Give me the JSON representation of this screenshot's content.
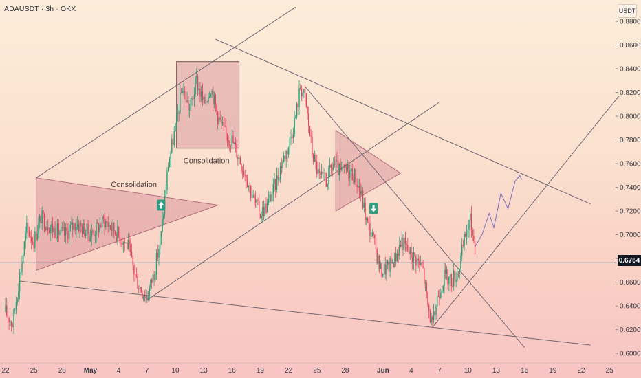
{
  "header": {
    "symbol": "ADAUSDT · 3h · OKX",
    "currency": "USDT"
  },
  "last_price": "0.6764",
  "chart_data": {
    "type": "candlestick",
    "symbol": "ADAUSDT",
    "interval": "3h",
    "exchange": "OKX",
    "y_axis_ticks": [
      "0.8800",
      "0.8600",
      "0.8400",
      "0.8200",
      "0.8000",
      "0.7800",
      "0.7600",
      "0.7400",
      "0.7200",
      "0.7000",
      "0.6800",
      "0.6600",
      "0.6400",
      "0.6200",
      "0.6000"
    ],
    "ylim": [
      0.592,
      0.898
    ],
    "x_axis_ticks": [
      {
        "label": "22",
        "i": 0
      },
      {
        "label": "25",
        "i": 24
      },
      {
        "label": "28",
        "i": 48
      },
      {
        "label": "May",
        "i": 72
      },
      {
        "label": "4",
        "i": 96
      },
      {
        "label": "7",
        "i": 120
      },
      {
        "label": "10",
        "i": 144
      },
      {
        "label": "13",
        "i": 168
      },
      {
        "label": "16",
        "i": 192
      },
      {
        "label": "19",
        "i": 216
      },
      {
        "label": "22",
        "i": 240
      },
      {
        "label": "25",
        "i": 264
      },
      {
        "label": "28",
        "i": 288
      },
      {
        "label": "Jun",
        "i": 320
      },
      {
        "label": "4",
        "i": 344
      },
      {
        "label": "7",
        "i": 368
      },
      {
        "label": "10",
        "i": 392
      },
      {
        "label": "13",
        "i": 416
      },
      {
        "label": "16",
        "i": 440
      },
      {
        "label": "19",
        "i": 464
      },
      {
        "label": "22",
        "i": 488
      },
      {
        "label": "25",
        "i": 512
      }
    ],
    "horizontal_level": 0.6764,
    "price_path_keypoints": [
      [
        0,
        0.635
      ],
      [
        6,
        0.625
      ],
      [
        12,
        0.665
      ],
      [
        18,
        0.705
      ],
      [
        24,
        0.695
      ],
      [
        30,
        0.715
      ],
      [
        40,
        0.705
      ],
      [
        50,
        0.7
      ],
      [
        60,
        0.71
      ],
      [
        72,
        0.7
      ],
      [
        84,
        0.712
      ],
      [
        96,
        0.7
      ],
      [
        104,
        0.69
      ],
      [
        110,
        0.665
      ],
      [
        116,
        0.652
      ],
      [
        120,
        0.648
      ],
      [
        126,
        0.668
      ],
      [
        132,
        0.7
      ],
      [
        138,
        0.76
      ],
      [
        144,
        0.79
      ],
      [
        150,
        0.825
      ],
      [
        156,
        0.805
      ],
      [
        162,
        0.83
      ],
      [
        168,
        0.81
      ],
      [
        174,
        0.825
      ],
      [
        180,
        0.8
      ],
      [
        186,
        0.785
      ],
      [
        192,
        0.78
      ],
      [
        198,
        0.765
      ],
      [
        204,
        0.75
      ],
      [
        210,
        0.73
      ],
      [
        216,
        0.718
      ],
      [
        222,
        0.725
      ],
      [
        228,
        0.74
      ],
      [
        234,
        0.76
      ],
      [
        240,
        0.775
      ],
      [
        246,
        0.8
      ],
      [
        250,
        0.825
      ],
      [
        254,
        0.815
      ],
      [
        260,
        0.77
      ],
      [
        266,
        0.748
      ],
      [
        272,
        0.745
      ],
      [
        278,
        0.76
      ],
      [
        284,
        0.752
      ],
      [
        290,
        0.755
      ],
      [
        296,
        0.75
      ],
      [
        302,
        0.732
      ],
      [
        306,
        0.712
      ],
      [
        312,
        0.695
      ],
      [
        318,
        0.67
      ],
      [
        324,
        0.672
      ],
      [
        330,
        0.68
      ],
      [
        336,
        0.695
      ],
      [
        342,
        0.685
      ],
      [
        348,
        0.68
      ],
      [
        354,
        0.67
      ],
      [
        358,
        0.64
      ],
      [
        362,
        0.622
      ],
      [
        366,
        0.648
      ],
      [
        372,
        0.665
      ],
      [
        378,
        0.662
      ],
      [
        384,
        0.67
      ],
      [
        390,
        0.7
      ],
      [
        394,
        0.712
      ],
      [
        398,
        0.69
      ]
    ],
    "annotations": [
      {
        "type": "triangle",
        "label": "Consolidation",
        "points": [
          [
            26,
            0.748
          ],
          [
            180,
            0.725
          ],
          [
            26,
            0.67
          ]
        ]
      },
      {
        "type": "rectangle",
        "label": "Consolidation",
        "x": [
          145,
          198
        ],
        "y": [
          0.773,
          0.846
        ]
      },
      {
        "type": "triangle",
        "label": "",
        "points": [
          [
            280,
            0.788
          ],
          [
            335,
            0.752
          ],
          [
            280,
            0.72
          ]
        ]
      },
      {
        "type": "arrow_up_marker",
        "i": 132,
        "price": 0.725
      },
      {
        "type": "arrow_down_marker",
        "i": 312,
        "price": 0.722
      }
    ],
    "trendlines": [
      {
        "from": [
          26,
          0.748
        ],
        "to": [
          246,
          0.892
        ]
      },
      {
        "from": [
          120,
          0.645
        ],
        "to": [
          368,
          0.812
        ]
      },
      {
        "from": [
          12,
          0.661
        ],
        "to": [
          496,
          0.607
        ]
      },
      {
        "from": [
          178,
          0.865
        ],
        "to": [
          496,
          0.726
        ]
      },
      {
        "from": [
          254,
          0.825
        ],
        "to": [
          440,
          0.605
        ]
      },
      {
        "from": [
          362,
          0.622
        ],
        "to": [
          520,
          0.817
        ]
      }
    ],
    "projection_path": [
      [
        398,
        0.69
      ],
      [
        404,
        0.7
      ],
      [
        410,
        0.718
      ],
      [
        414,
        0.706
      ],
      [
        420,
        0.735
      ],
      [
        426,
        0.722
      ],
      [
        432,
        0.745
      ],
      [
        436,
        0.75
      ]
    ],
    "grid": false,
    "legend": "none"
  }
}
